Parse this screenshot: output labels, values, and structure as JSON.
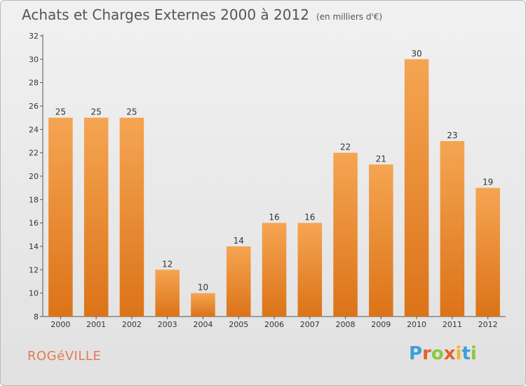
{
  "title": "Achats et Charges Externes 2000 à 2012",
  "unit": "(en milliers d'€)",
  "town": "ROGéVILLE",
  "logo": {
    "letters": [
      "P",
      "r",
      "o",
      "x",
      "i",
      "t",
      "i"
    ],
    "colors": [
      "#3e9fd8",
      "#e0612e",
      "#8dc63f",
      "#e0612e",
      "#f2b630",
      "#3e9fd8",
      "#8dc63f"
    ]
  },
  "colors": {
    "bar_light": "#f5a552",
    "bar_dark": "#dc7318",
    "axis": "#555555"
  },
  "chart_data": {
    "type": "bar",
    "title": "Achats et Charges Externes 2000 à 2012",
    "subtitle": "(en milliers d'€)",
    "categories": [
      "2000",
      "2001",
      "2002",
      "2003",
      "2004",
      "2005",
      "2006",
      "2007",
      "2008",
      "2009",
      "2010",
      "2011",
      "2012"
    ],
    "values": [
      25,
      25,
      25,
      12,
      10,
      14,
      16,
      16,
      22,
      21,
      30,
      23,
      19
    ],
    "ylim": [
      8,
      32
    ],
    "yticks": [
      8,
      10,
      12,
      14,
      16,
      18,
      20,
      22,
      24,
      26,
      28,
      30,
      32
    ],
    "xlabel": "",
    "ylabel": "",
    "grid": false,
    "legend": "none"
  }
}
